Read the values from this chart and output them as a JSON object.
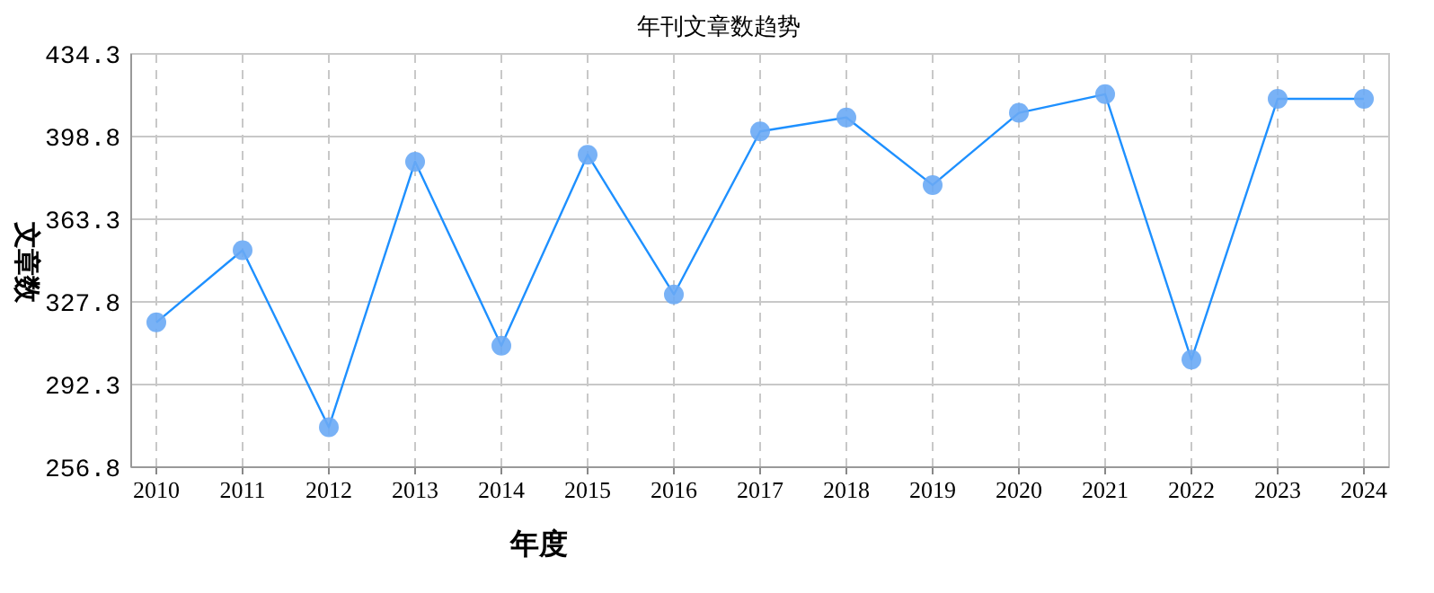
{
  "chart_data": {
    "type": "line",
    "title": "年刊文章数趋势",
    "xlabel": "年度",
    "ylabel": "文章数",
    "categories": [
      "2010",
      "2011",
      "2012",
      "2013",
      "2014",
      "2015",
      "2016",
      "2017",
      "2018",
      "2019",
      "2020",
      "2021",
      "2022",
      "2023",
      "2024"
    ],
    "series": [
      {
        "color": "#1e90ff",
        "values": [
          319,
          350,
          274,
          388,
          309,
          391,
          331,
          401,
          407,
          378,
          409,
          417,
          303,
          415,
          415
        ]
      }
    ],
    "ylim": [
      256.8,
      434.3
    ],
    "yticks": [
      256.8,
      292.3,
      327.8,
      363.3,
      398.8,
      434.3
    ],
    "grid": true,
    "marker": "circle",
    "line_style": "solid"
  }
}
